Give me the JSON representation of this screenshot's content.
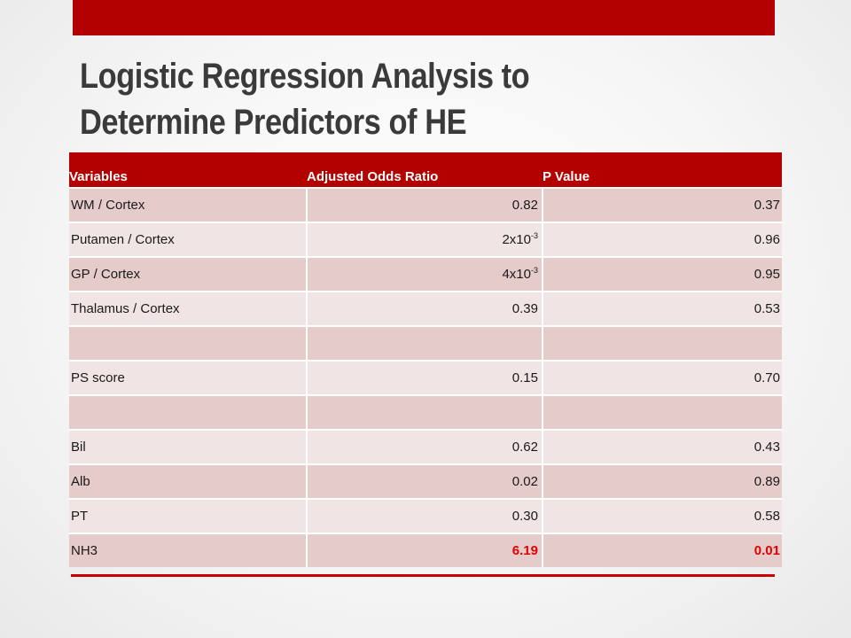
{
  "title": {
    "line1": "Logistic Regression Analysis to",
    "line2": "Determine Predictors of HE"
  },
  "table": {
    "headers": [
      "Variables",
      "Adjusted Odds Ratio",
      "P Value"
    ],
    "rows": [
      {
        "variable": "WM / Cortex",
        "odds_base": "0.82",
        "odds_exp": "",
        "p": "0.37"
      },
      {
        "variable": "Putamen / Cortex",
        "odds_base": "2x10",
        "odds_exp": "-3",
        "p": "0.96"
      },
      {
        "variable": "GP / Cortex",
        "odds_base": "4x10",
        "odds_exp": "-3",
        "p": "0.95"
      },
      {
        "variable": "Thalamus / Cortex",
        "odds_base": "0.39",
        "odds_exp": "",
        "p": "0.53"
      },
      {
        "variable": "",
        "odds_base": "",
        "odds_exp": "",
        "p": ""
      },
      {
        "variable": "PS score",
        "odds_base": "0.15",
        "odds_exp": "",
        "p": "0.70"
      },
      {
        "variable": "",
        "odds_base": "",
        "odds_exp": "",
        "p": ""
      },
      {
        "variable": "Bil",
        "odds_base": "0.62",
        "odds_exp": "",
        "p": "0.43"
      },
      {
        "variable": "Alb",
        "odds_base": "0.02",
        "odds_exp": "",
        "p": "0.89"
      },
      {
        "variable": "PT",
        "odds_base": "0.30",
        "odds_exp": "",
        "p": "0.58"
      },
      {
        "variable": "NH3",
        "odds_base": "6.19",
        "odds_exp": "",
        "p": "0.01",
        "significant": true
      }
    ]
  },
  "colors": {
    "accent": "#b30000",
    "significant": "#e00000",
    "row_dark": "#e6cbcb",
    "row_light": "#f1e4e4"
  }
}
